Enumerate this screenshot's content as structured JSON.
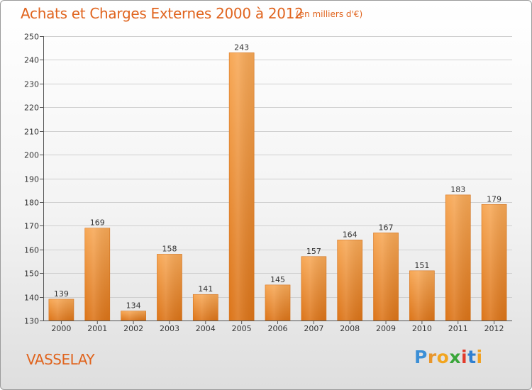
{
  "header": {
    "title": "Achats et Charges Externes 2000 à 2012",
    "unit": "(en milliers d'€)"
  },
  "footer": {
    "commune": "VASSELAY",
    "logo": {
      "letters": [
        "P",
        "r",
        "o",
        "x",
        "i",
        "t",
        "i"
      ],
      "colors": [
        "#3c8fd6",
        "#e8962c",
        "#f2a51f",
        "#3aa63a",
        "#e23a2a",
        "#2f7fd0",
        "#f0a020"
      ]
    }
  },
  "colors": {
    "bar_light": "#f7a856",
    "bar_dark": "#dc7418",
    "axis": "#555555",
    "grid": "#cfcfcf",
    "accent": "#e0641e"
  },
  "chart_data": {
    "type": "bar",
    "categories": [
      "2000",
      "2001",
      "2002",
      "2003",
      "2004",
      "2005",
      "2006",
      "2007",
      "2008",
      "2009",
      "2010",
      "2011",
      "2012"
    ],
    "values": [
      139,
      169,
      134,
      158,
      141,
      243,
      145,
      157,
      164,
      167,
      151,
      183,
      179
    ],
    "ylim": [
      130,
      250
    ],
    "yticks": [
      130,
      140,
      150,
      160,
      170,
      180,
      190,
      200,
      210,
      220,
      230,
      240,
      250
    ],
    "grid": true,
    "data_labels": true
  }
}
